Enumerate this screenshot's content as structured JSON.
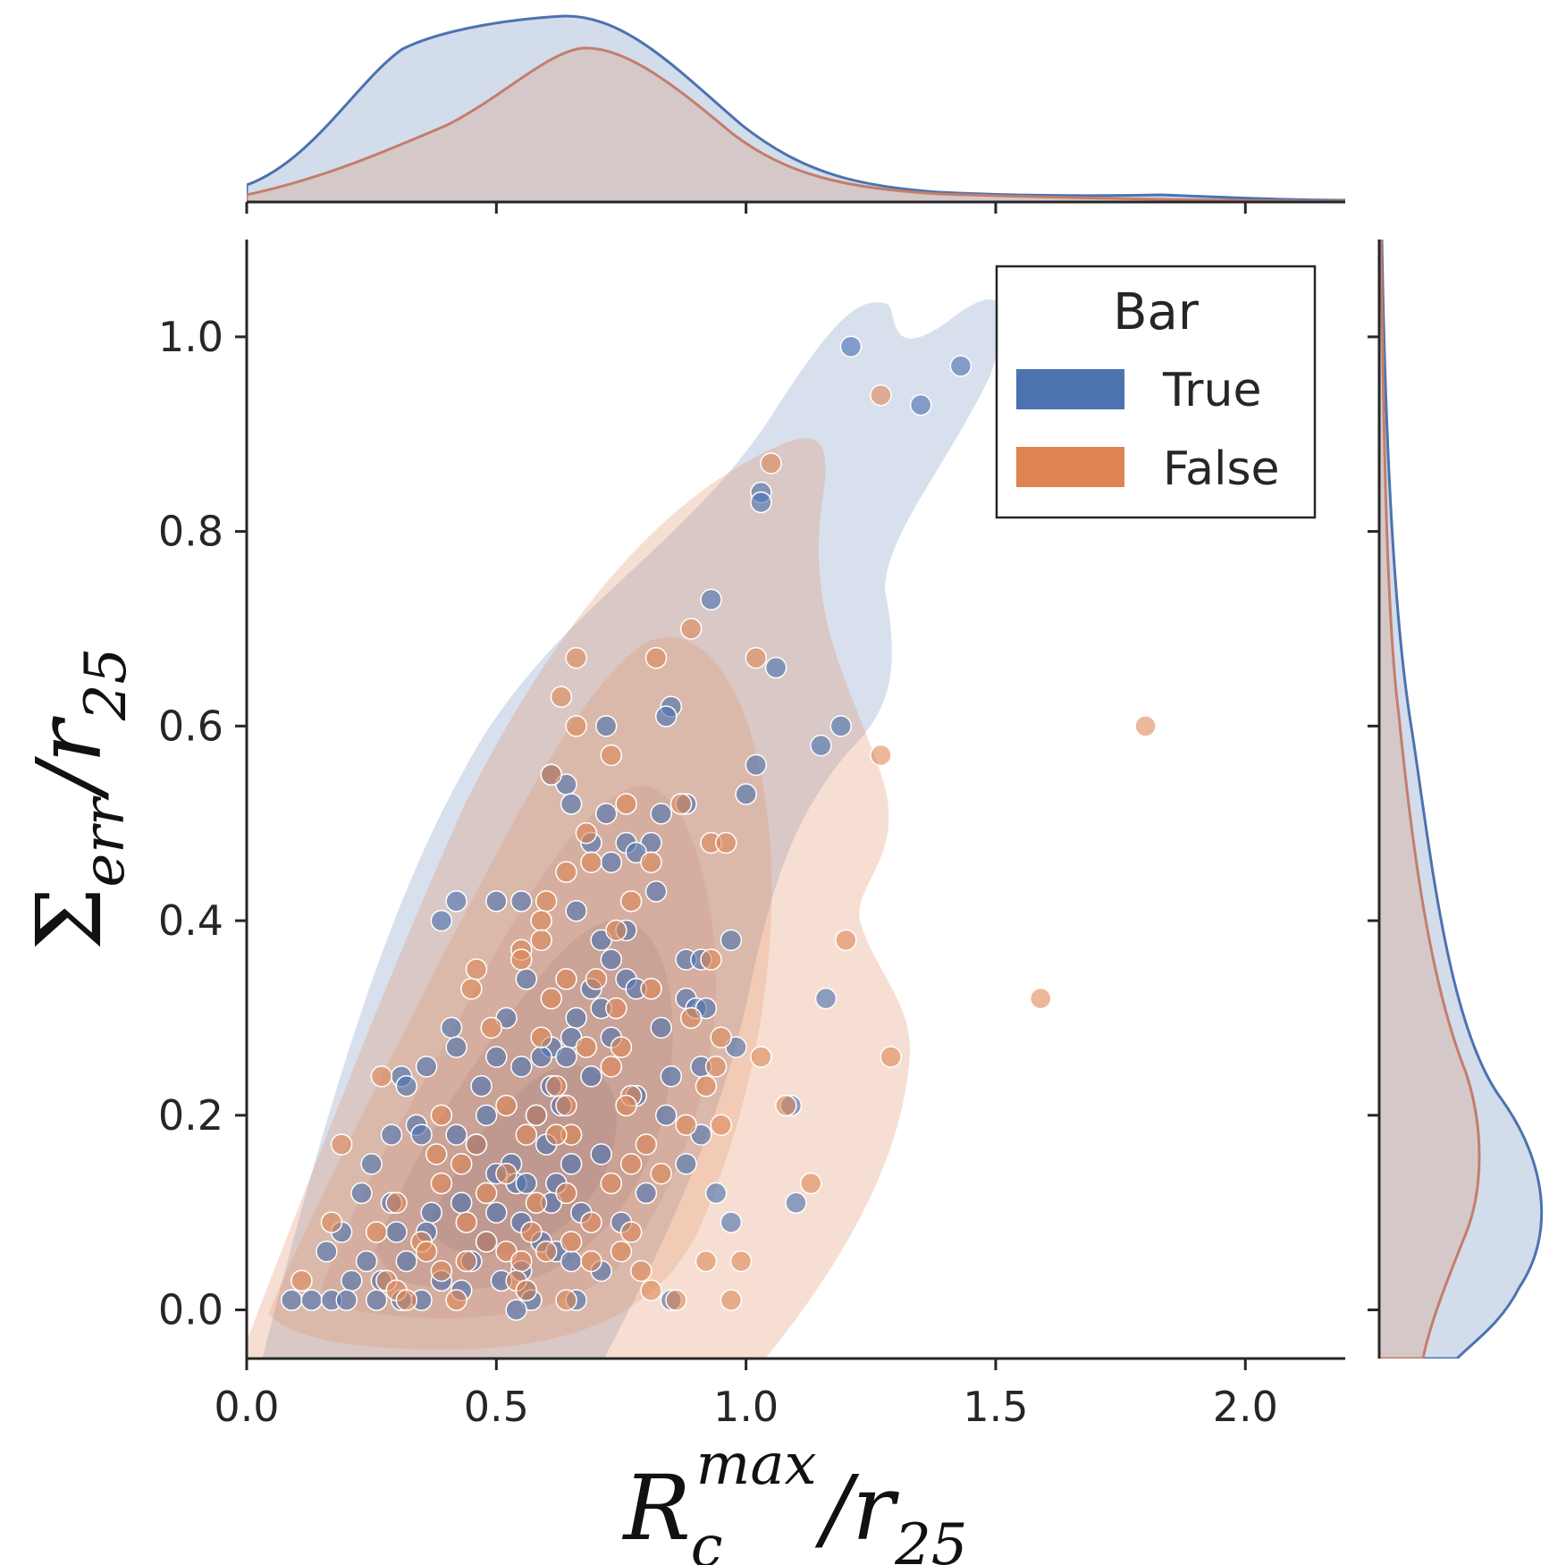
{
  "chart_data": {
    "type": "scatter",
    "subtype": "jointplot with kde contours and marginal kde",
    "xlabel": {
      "base": "R",
      "sub": "c",
      "sup": "max",
      "tail": "/r",
      "tail_sub": "25"
    },
    "ylabel": {
      "base": "Σ",
      "sub": "err",
      "tail": "/r",
      "tail_sub": "25"
    },
    "xlim": [
      0.0,
      2.2
    ],
    "ylim": [
      -0.05,
      1.1
    ],
    "xticks": [
      "0.0",
      "0.5",
      "1.0",
      "1.5",
      "2.0"
    ],
    "xtick_values": [
      0.0,
      0.5,
      1.0,
      1.5,
      2.0
    ],
    "yticks": [
      "0.0",
      "0.2",
      "0.4",
      "0.6",
      "0.8",
      "1.0"
    ],
    "ytick_values": [
      0.0,
      0.2,
      0.4,
      0.6,
      0.8,
      1.0
    ],
    "grid": false,
    "legend": {
      "title": "Bar",
      "placement": "top-right"
    },
    "series": [
      {
        "name": "True",
        "color": "#4c72b0",
        "points": [
          [
            1.21,
            0.99
          ],
          [
            1.43,
            0.97
          ],
          [
            1.35,
            0.93
          ],
          [
            1.03,
            0.84
          ],
          [
            1.03,
            0.83
          ],
          [
            0.93,
            0.73
          ],
          [
            1.06,
            0.66
          ],
          [
            0.85,
            0.62
          ],
          [
            0.84,
            0.61
          ],
          [
            0.72,
            0.6
          ],
          [
            1.19,
            0.6
          ],
          [
            1.15,
            0.58
          ],
          [
            1.02,
            0.56
          ],
          [
            0.61,
            0.55
          ],
          [
            0.64,
            0.54
          ],
          [
            1.0,
            0.53
          ],
          [
            0.65,
            0.52
          ],
          [
            0.88,
            0.52
          ],
          [
            0.72,
            0.51
          ],
          [
            0.83,
            0.51
          ],
          [
            0.69,
            0.48
          ],
          [
            0.76,
            0.48
          ],
          [
            0.81,
            0.48
          ],
          [
            0.78,
            0.47
          ],
          [
            0.73,
            0.46
          ],
          [
            0.82,
            0.43
          ],
          [
            0.42,
            0.42
          ],
          [
            0.5,
            0.42
          ],
          [
            0.55,
            0.42
          ],
          [
            0.66,
            0.41
          ],
          [
            0.39,
            0.4
          ],
          [
            0.76,
            0.39
          ],
          [
            0.71,
            0.38
          ],
          [
            0.97,
            0.38
          ],
          [
            0.73,
            0.36
          ],
          [
            0.88,
            0.36
          ],
          [
            0.91,
            0.36
          ],
          [
            0.56,
            0.34
          ],
          [
            0.76,
            0.34
          ],
          [
            0.69,
            0.33
          ],
          [
            1.16,
            0.32
          ],
          [
            0.78,
            0.33
          ],
          [
            0.88,
            0.32
          ],
          [
            0.9,
            0.31
          ],
          [
            0.92,
            0.31
          ],
          [
            0.66,
            0.3
          ],
          [
            0.71,
            0.31
          ],
          [
            0.52,
            0.3
          ],
          [
            0.41,
            0.29
          ],
          [
            0.65,
            0.28
          ],
          [
            0.73,
            0.28
          ],
          [
            0.83,
            0.29
          ],
          [
            0.98,
            0.27
          ],
          [
            0.61,
            0.27
          ],
          [
            0.42,
            0.27
          ],
          [
            0.5,
            0.26
          ],
          [
            0.59,
            0.26
          ],
          [
            0.64,
            0.26
          ],
          [
            0.36,
            0.25
          ],
          [
            0.91,
            0.25
          ],
          [
            0.55,
            0.25
          ],
          [
            0.31,
            0.24
          ],
          [
            0.69,
            0.24
          ],
          [
            0.61,
            0.23
          ],
          [
            0.32,
            0.23
          ],
          [
            0.47,
            0.23
          ],
          [
            0.85,
            0.24
          ],
          [
            0.78,
            0.22
          ],
          [
            1.09,
            0.21
          ],
          [
            0.63,
            0.21
          ],
          [
            0.48,
            0.2
          ],
          [
            0.58,
            0.2
          ],
          [
            0.34,
            0.19
          ],
          [
            0.84,
            0.2
          ],
          [
            0.91,
            0.18
          ],
          [
            0.35,
            0.18
          ],
          [
            0.42,
            0.18
          ],
          [
            0.29,
            0.18
          ],
          [
            0.46,
            0.17
          ],
          [
            0.6,
            0.17
          ],
          [
            0.71,
            0.16
          ],
          [
            0.25,
            0.15
          ],
          [
            0.53,
            0.15
          ],
          [
            0.65,
            0.15
          ],
          [
            0.88,
            0.15
          ],
          [
            0.5,
            0.14
          ],
          [
            0.54,
            0.13
          ],
          [
            0.56,
            0.13
          ],
          [
            0.62,
            0.13
          ],
          [
            0.23,
            0.12
          ],
          [
            0.29,
            0.11
          ],
          [
            0.43,
            0.11
          ],
          [
            0.61,
            0.11
          ],
          [
            0.8,
            0.12
          ],
          [
            0.94,
            0.12
          ],
          [
            1.1,
            0.11
          ],
          [
            0.37,
            0.1
          ],
          [
            0.5,
            0.1
          ],
          [
            0.55,
            0.09
          ],
          [
            0.67,
            0.1
          ],
          [
            0.75,
            0.09
          ],
          [
            0.19,
            0.08
          ],
          [
            0.3,
            0.08
          ],
          [
            0.36,
            0.08
          ],
          [
            0.48,
            0.07
          ],
          [
            0.59,
            0.07
          ],
          [
            0.97,
            0.09
          ],
          [
            0.62,
            0.06
          ],
          [
            0.16,
            0.06
          ],
          [
            0.24,
            0.05
          ],
          [
            0.32,
            0.05
          ],
          [
            0.45,
            0.05
          ],
          [
            0.55,
            0.04
          ],
          [
            0.65,
            0.05
          ],
          [
            0.71,
            0.04
          ],
          [
            0.21,
            0.03
          ],
          [
            0.27,
            0.03
          ],
          [
            0.39,
            0.03
          ],
          [
            0.51,
            0.03
          ],
          [
            0.56,
            0.02
          ],
          [
            0.09,
            0.01
          ],
          [
            0.13,
            0.01
          ],
          [
            0.17,
            0.01
          ],
          [
            0.2,
            0.01
          ],
          [
            0.26,
            0.01
          ],
          [
            0.35,
            0.01
          ],
          [
            0.43,
            0.02
          ],
          [
            0.57,
            0.01
          ],
          [
            0.66,
            0.01
          ],
          [
            0.85,
            0.01
          ],
          [
            0.54,
            0.0
          ],
          [
            0.31,
            0.01
          ]
        ]
      },
      {
        "name": "False",
        "color": "#dd8452",
        "points": [
          [
            1.27,
            0.94
          ],
          [
            1.05,
            0.87
          ],
          [
            0.89,
            0.7
          ],
          [
            0.66,
            0.67
          ],
          [
            0.82,
            0.67
          ],
          [
            1.02,
            0.67
          ],
          [
            0.63,
            0.63
          ],
          [
            0.66,
            0.6
          ],
          [
            1.8,
            0.6
          ],
          [
            1.27,
            0.57
          ],
          [
            0.73,
            0.57
          ],
          [
            0.61,
            0.55
          ],
          [
            0.76,
            0.52
          ],
          [
            0.87,
            0.52
          ],
          [
            0.68,
            0.49
          ],
          [
            0.93,
            0.48
          ],
          [
            0.96,
            0.48
          ],
          [
            0.69,
            0.46
          ],
          [
            0.81,
            0.46
          ],
          [
            0.64,
            0.45
          ],
          [
            0.77,
            0.42
          ],
          [
            0.6,
            0.42
          ],
          [
            0.59,
            0.4
          ],
          [
            0.74,
            0.39
          ],
          [
            1.2,
            0.38
          ],
          [
            0.59,
            0.38
          ],
          [
            0.55,
            0.37
          ],
          [
            0.55,
            0.36
          ],
          [
            0.46,
            0.35
          ],
          [
            0.93,
            0.36
          ],
          [
            0.64,
            0.34
          ],
          [
            0.7,
            0.34
          ],
          [
            1.59,
            0.32
          ],
          [
            0.45,
            0.33
          ],
          [
            0.81,
            0.33
          ],
          [
            0.61,
            0.32
          ],
          [
            0.74,
            0.31
          ],
          [
            0.89,
            0.3
          ],
          [
            0.49,
            0.29
          ],
          [
            0.95,
            0.28
          ],
          [
            0.59,
            0.28
          ],
          [
            0.68,
            0.27
          ],
          [
            1.03,
            0.26
          ],
          [
            0.75,
            0.27
          ],
          [
            0.73,
            0.25
          ],
          [
            1.29,
            0.26
          ],
          [
            0.94,
            0.25
          ],
          [
            0.92,
            0.23
          ],
          [
            0.27,
            0.24
          ],
          [
            0.62,
            0.23
          ],
          [
            0.77,
            0.22
          ],
          [
            0.52,
            0.21
          ],
          [
            0.64,
            0.21
          ],
          [
            0.76,
            0.21
          ],
          [
            1.08,
            0.21
          ],
          [
            0.39,
            0.2
          ],
          [
            0.58,
            0.2
          ],
          [
            0.95,
            0.19
          ],
          [
            0.88,
            0.19
          ],
          [
            0.19,
            0.17
          ],
          [
            0.65,
            0.18
          ],
          [
            0.56,
            0.18
          ],
          [
            0.62,
            0.18
          ],
          [
            0.46,
            0.17
          ],
          [
            0.8,
            0.17
          ],
          [
            0.38,
            0.16
          ],
          [
            0.77,
            0.15
          ],
          [
            0.43,
            0.15
          ],
          [
            0.52,
            0.14
          ],
          [
            0.83,
            0.14
          ],
          [
            1.13,
            0.13
          ],
          [
            0.39,
            0.13
          ],
          [
            0.48,
            0.12
          ],
          [
            0.64,
            0.12
          ],
          [
            0.73,
            0.13
          ],
          [
            0.3,
            0.11
          ],
          [
            0.58,
            0.11
          ],
          [
            0.17,
            0.09
          ],
          [
            0.44,
            0.09
          ],
          [
            0.69,
            0.09
          ],
          [
            0.26,
            0.08
          ],
          [
            0.57,
            0.08
          ],
          [
            0.77,
            0.08
          ],
          [
            0.35,
            0.07
          ],
          [
            0.48,
            0.07
          ],
          [
            0.65,
            0.07
          ],
          [
            0.52,
            0.06
          ],
          [
            0.36,
            0.06
          ],
          [
            0.6,
            0.06
          ],
          [
            0.75,
            0.06
          ],
          [
            0.99,
            0.05
          ],
          [
            0.44,
            0.05
          ],
          [
            0.55,
            0.05
          ],
          [
            0.69,
            0.05
          ],
          [
            0.92,
            0.05
          ],
          [
            0.39,
            0.04
          ],
          [
            0.79,
            0.04
          ],
          [
            0.54,
            0.03
          ],
          [
            0.28,
            0.03
          ],
          [
            0.11,
            0.03
          ],
          [
            0.3,
            0.02
          ],
          [
            0.56,
            0.02
          ],
          [
            0.81,
            0.02
          ],
          [
            0.64,
            0.01
          ],
          [
            0.42,
            0.01
          ],
          [
            0.86,
            0.01
          ],
          [
            0.97,
            0.01
          ],
          [
            0.32,
            0.01
          ]
        ]
      }
    ]
  }
}
